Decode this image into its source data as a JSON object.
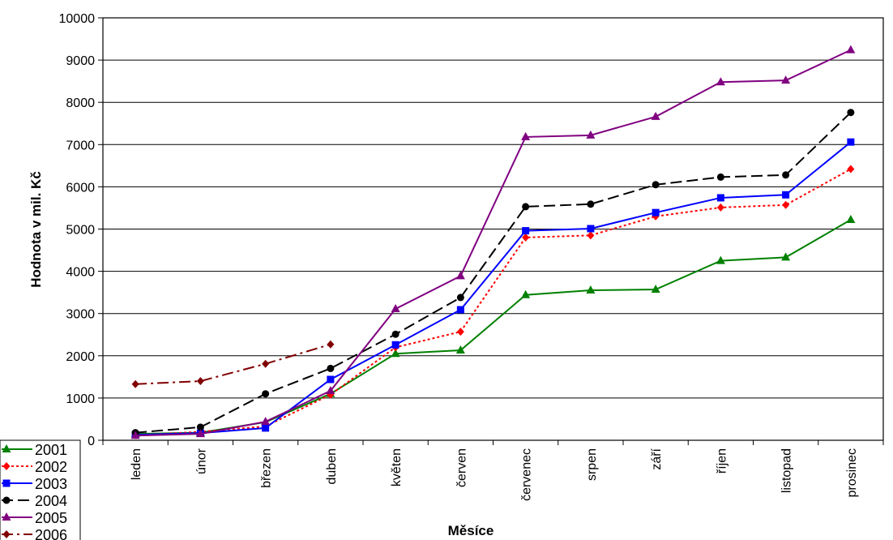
{
  "chart_data": {
    "type": "line",
    "title": "",
    "xlabel": "Měsíce",
    "ylabel": "Hodnota v mil. Kč",
    "ylim": [
      0,
      10000
    ],
    "yticks": [
      0,
      1000,
      2000,
      3000,
      4000,
      5000,
      6000,
      7000,
      8000,
      9000,
      10000
    ],
    "grid": "horizontal",
    "legend_position": "bottom-left",
    "categories": [
      "leden",
      "únor",
      "březen",
      "duben",
      "květen",
      "červen",
      "červenec",
      "srpen",
      "září",
      "říjen",
      "listopad",
      "prosinec"
    ],
    "series": [
      {
        "name": "2001",
        "color": "#008000",
        "dash": "solid",
        "marker": "triangle",
        "values": [
          150,
          180,
          430,
          1100,
          2050,
          2130,
          3440,
          3550,
          3570,
          4250,
          4330,
          5220
        ]
      },
      {
        "name": "2002",
        "color": "#ff0000",
        "dash": "dotted",
        "marker": "diamond",
        "values": [
          120,
          200,
          330,
          1080,
          2200,
          2570,
          4800,
          4850,
          5300,
          5510,
          5570,
          6420
        ]
      },
      {
        "name": "2003",
        "color": "#0000ff",
        "dash": "solid",
        "marker": "square",
        "values": [
          130,
          170,
          290,
          1440,
          2260,
          3090,
          4960,
          5010,
          5390,
          5740,
          5810,
          7060
        ]
      },
      {
        "name": "2004",
        "color": "#000000",
        "dash": "dashed",
        "marker": "circle",
        "values": [
          180,
          310,
          1100,
          1700,
          2510,
          3380,
          5530,
          5590,
          6050,
          6230,
          6280,
          7760
        ]
      },
      {
        "name": "2005",
        "color": "#800080",
        "dash": "solid",
        "marker": "triangle",
        "values": [
          110,
          150,
          440,
          1170,
          3110,
          3890,
          7180,
          7220,
          7660,
          8480,
          8520,
          9240
        ]
      },
      {
        "name": "2006",
        "color": "#800000",
        "dash": "dashdot",
        "marker": "diamond",
        "values": [
          1330,
          1400,
          1810,
          2270,
          null,
          null,
          null,
          null,
          null,
          null,
          null,
          null
        ]
      }
    ]
  }
}
